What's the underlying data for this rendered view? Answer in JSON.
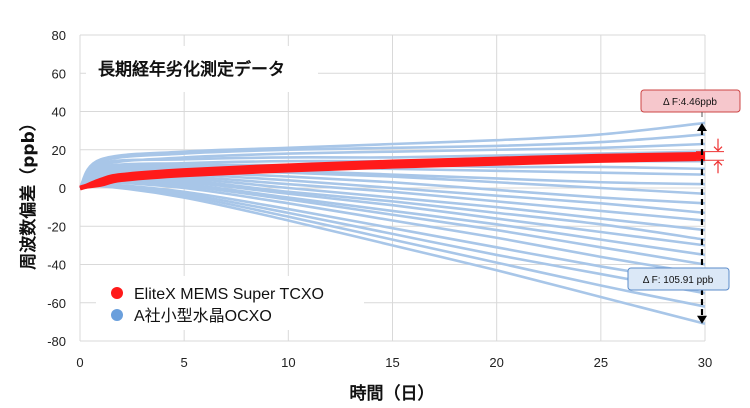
{
  "chart_data": {
    "type": "line",
    "title": "長期経年劣化測定データ",
    "xlabel": "時間（日）",
    "ylabel": "周波数偏差（ppb）",
    "xlim": [
      0,
      30
    ],
    "ylim": [
      -80,
      80
    ],
    "x_ticks": [
      0,
      5,
      10,
      15,
      20,
      25,
      30
    ],
    "y_ticks": [
      80,
      60,
      40,
      20,
      0,
      -20,
      -40,
      -60,
      -80
    ],
    "grid": true,
    "legend_position": "bottom-left",
    "colors": {
      "elitex": "#ff1a1a",
      "ocxo": "#a8c6e8",
      "legend_ocxo": "#6a9fdc"
    },
    "series": [
      {
        "name": "EliteX MEMS Super TCXO",
        "group": "elitex",
        "x": [
          0,
          1,
          2,
          5,
          10,
          15,
          20,
          25,
          30
        ],
        "y": [
          0,
          3,
          5.5,
          8,
          10.5,
          12.5,
          14,
          15.5,
          16.5
        ]
      },
      {
        "name": "A社小型水晶OCXO",
        "group": "ocxo",
        "x": [
          0,
          1,
          5,
          10,
          15,
          20,
          25,
          30
        ],
        "y": [
          0,
          15,
          19,
          21,
          23,
          25,
          28,
          34
        ]
      },
      {
        "group": "ocxo",
        "x": [
          0,
          1,
          5,
          10,
          15,
          20,
          25,
          30
        ],
        "y": [
          0,
          14,
          18,
          20,
          21,
          22,
          24,
          28
        ]
      },
      {
        "group": "ocxo",
        "x": [
          0,
          1,
          5,
          10,
          15,
          20,
          25,
          30
        ],
        "y": [
          0,
          12,
          16,
          18,
          19,
          20,
          21,
          23
        ]
      },
      {
        "group": "ocxo",
        "x": [
          0,
          1,
          5,
          10,
          15,
          20,
          25,
          30
        ],
        "y": [
          0,
          13,
          15,
          16,
          16,
          17,
          18,
          19
        ]
      },
      {
        "group": "ocxo",
        "x": [
          0,
          1,
          5,
          10,
          15,
          20,
          25,
          30
        ],
        "y": [
          0,
          11,
          13,
          14,
          14,
          14,
          14,
          14
        ]
      },
      {
        "group": "ocxo",
        "x": [
          0,
          1,
          5,
          10,
          15,
          20,
          25,
          30
        ],
        "y": [
          0,
          10,
          12,
          12,
          12,
          11,
          11,
          10
        ]
      },
      {
        "group": "ocxo",
        "x": [
          0,
          1,
          5,
          10,
          15,
          20,
          25,
          30
        ],
        "y": [
          0,
          9,
          11,
          11,
          10,
          9,
          8,
          7
        ]
      },
      {
        "group": "ocxo",
        "x": [
          0,
          1,
          5,
          10,
          15,
          20,
          25,
          30
        ],
        "y": [
          0,
          8,
          10,
          9,
          7,
          5,
          3,
          2
        ]
      },
      {
        "group": "ocxo",
        "x": [
          0,
          1,
          5,
          10,
          15,
          20,
          25,
          30
        ],
        "y": [
          0,
          8,
          9,
          8,
          6,
          3,
          0,
          -3
        ]
      },
      {
        "group": "ocxo",
        "x": [
          0,
          1,
          5,
          10,
          15,
          20,
          25,
          30
        ],
        "y": [
          0,
          7,
          8,
          6,
          3,
          -1,
          -5,
          -8
        ]
      },
      {
        "group": "ocxo",
        "x": [
          0,
          1,
          5,
          10,
          15,
          20,
          25,
          30
        ],
        "y": [
          0,
          6,
          7,
          4,
          0,
          -4,
          -8,
          -13
        ]
      },
      {
        "group": "ocxo",
        "x": [
          0,
          1,
          5,
          10,
          15,
          20,
          25,
          30
        ],
        "y": [
          0,
          6,
          6,
          2,
          -2,
          -7,
          -12,
          -17
        ]
      },
      {
        "group": "ocxo",
        "x": [
          0,
          1,
          5,
          10,
          15,
          20,
          25,
          30
        ],
        "y": [
          0,
          5,
          5,
          0,
          -5,
          -10,
          -16,
          -22
        ]
      },
      {
        "group": "ocxo",
        "x": [
          0,
          1,
          5,
          10,
          15,
          20,
          25,
          30
        ],
        "y": [
          0,
          5,
          4,
          -2,
          -7,
          -13,
          -19,
          -27
        ]
      },
      {
        "group": "ocxo",
        "x": [
          0,
          1,
          5,
          10,
          15,
          20,
          25,
          30
        ],
        "y": [
          0,
          4,
          3,
          -3,
          -9,
          -16,
          -23,
          -30
        ]
      },
      {
        "group": "ocxo",
        "x": [
          0,
          1,
          5,
          10,
          15,
          20,
          25,
          30
        ],
        "y": [
          0,
          4,
          2,
          -5,
          -12,
          -19,
          -27,
          -35
        ]
      },
      {
        "group": "ocxo",
        "x": [
          0,
          1,
          5,
          10,
          15,
          20,
          25,
          30
        ],
        "y": [
          0,
          3,
          1,
          -6,
          -14,
          -22,
          -31,
          -40
        ]
      },
      {
        "group": "ocxo",
        "x": [
          0,
          1,
          5,
          10,
          15,
          20,
          25,
          30
        ],
        "y": [
          0,
          3,
          0,
          -8,
          -17,
          -26,
          -36,
          -45
        ]
      },
      {
        "group": "ocxo",
        "x": [
          0,
          1,
          5,
          10,
          15,
          20,
          25,
          30
        ],
        "y": [
          0,
          2,
          -2,
          -11,
          -21,
          -31,
          -41,
          -50
        ]
      },
      {
        "group": "ocxo",
        "x": [
          0,
          1,
          5,
          10,
          15,
          20,
          25,
          30
        ],
        "y": [
          0,
          2,
          -3,
          -13,
          -24,
          -35,
          -45,
          -55
        ]
      },
      {
        "group": "ocxo",
        "x": [
          0,
          1,
          5,
          10,
          15,
          20,
          25,
          30
        ],
        "y": [
          0,
          1,
          -4,
          -15,
          -27,
          -39,
          -51,
          -62
        ]
      },
      {
        "group": "ocxo",
        "x": [
          0,
          1,
          5,
          10,
          15,
          20,
          25,
          30
        ],
        "y": [
          0,
          1,
          -5,
          -17,
          -30,
          -43,
          -57,
          -71
        ]
      }
    ],
    "legend": [
      {
        "label": "EliteX MEMS Super TCXO",
        "color": "#ff1a1a"
      },
      {
        "label": "A社小型水晶OCXO",
        "color": "#6a9fdc"
      }
    ],
    "annotations": [
      {
        "text": "Δ F:4.46ppb",
        "style": "red-callout",
        "y_top": 19,
        "y_bottom": 14.5,
        "arrow": "narrow-band"
      },
      {
        "text": "Δ F: 105.91 ppb",
        "style": "blue-callout",
        "y_top": 34,
        "y_bottom": -71,
        "arrow": "double-headed"
      }
    ]
  }
}
